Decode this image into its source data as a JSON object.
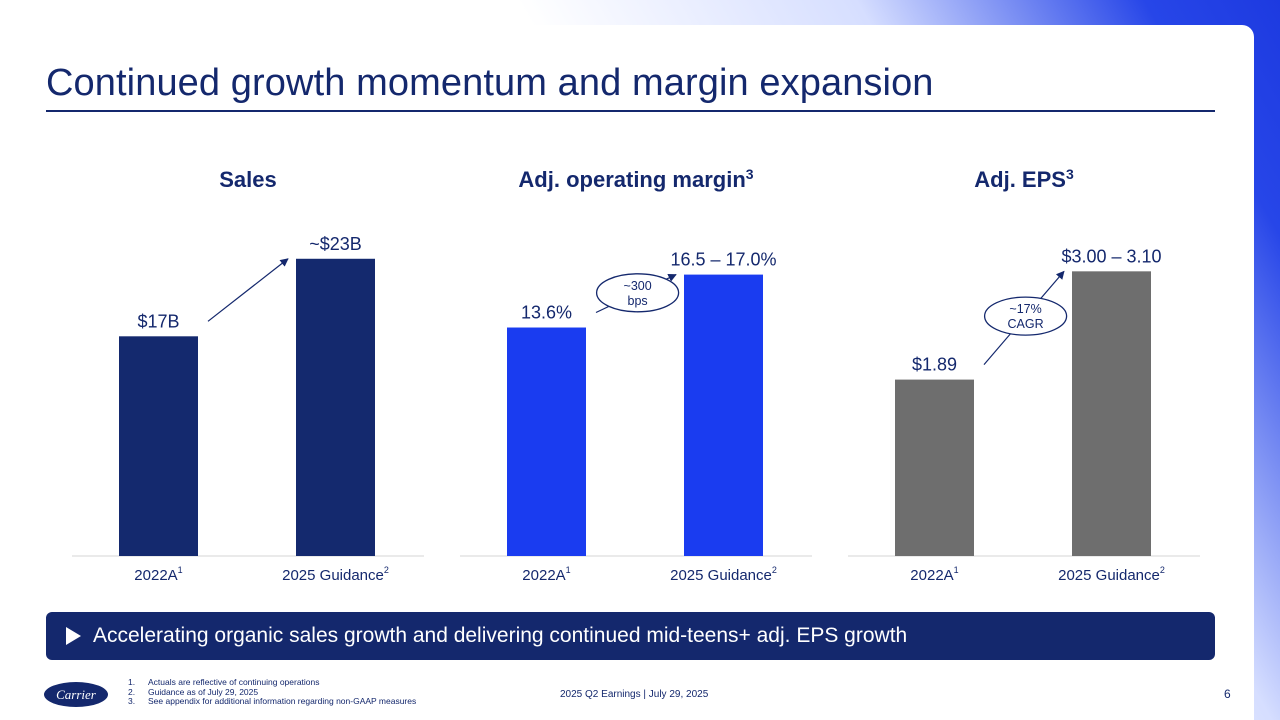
{
  "slide": {
    "title": "Continued growth momentum and margin expansion",
    "banner_text": "Accelerating organic sales growth and delivering continued mid-teens+ adj. EPS growth",
    "banner_icon": "play-triangle-icon",
    "logo_text": "Carrier",
    "footnotes": [
      {
        "num": "1.",
        "text": "Actuals are reflective of continuing operations"
      },
      {
        "num": "2.",
        "text": "Guidance as of July 29, 2025"
      },
      {
        "num": "3.",
        "text": "See appendix for additional information regarding non-GAAP measures"
      }
    ],
    "footer_center": "2025 Q2 Earnings | July 29, 2025",
    "page_number": "6"
  },
  "colors": {
    "navy": "#14286d",
    "sales_bar": "#14296e",
    "margin_bar": "#1a3cf0",
    "eps_bar": "#6e6e6e",
    "accent_gradient": "#1d3ae0"
  },
  "chart_data": [
    {
      "type": "bar",
      "title": "Sales",
      "title_sup": "",
      "categories": [
        "2022A",
        "2025 Guidance"
      ],
      "category_sups": [
        "1",
        "2"
      ],
      "values": [
        17,
        23
      ],
      "value_labels": [
        "$17B",
        "~$23B"
      ],
      "units": "$B",
      "growth_label": [],
      "ylim": [
        0,
        26
      ],
      "grid": false,
      "legend": "none"
    },
    {
      "type": "bar",
      "title": "Adj. operating margin",
      "title_sup": "3",
      "categories": [
        "2022A",
        "2025 Guidance"
      ],
      "category_sups": [
        "1",
        "2"
      ],
      "values": [
        13.6,
        16.75
      ],
      "value_labels": [
        "13.6%",
        "16.5 – 17.0%"
      ],
      "units": "%",
      "growth_label": [
        "~300",
        "bps"
      ],
      "ylim": [
        0,
        20
      ],
      "grid": false,
      "legend": "none"
    },
    {
      "type": "bar",
      "title": "Adj. EPS",
      "title_sup": "3",
      "categories": [
        "2022A",
        "2025 Guidance"
      ],
      "category_sups": [
        "1",
        "2"
      ],
      "values": [
        1.89,
        3.05
      ],
      "value_labels": [
        "$1.89",
        "$3.00 – 3.10"
      ],
      "units": "$",
      "growth_label": [
        "~17%",
        "CAGR"
      ],
      "ylim": [
        0,
        3.6
      ],
      "grid": false,
      "legend": "none"
    }
  ]
}
